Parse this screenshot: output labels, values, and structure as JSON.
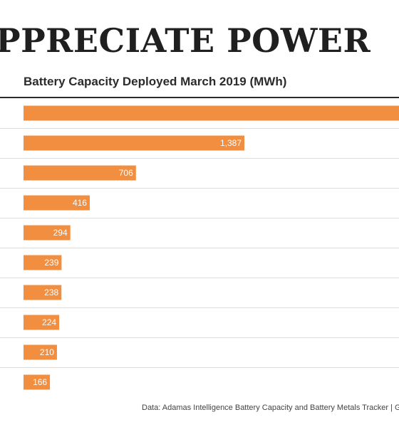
{
  "header": {
    "title": "PPRECIATE POWER",
    "subtitle": "Battery Capacity Deployed March 2019 (MWh)"
  },
  "footer": {
    "source": "Data: Adamas Intelligence Battery Capacity and Battery Metals Tracker | Graph"
  },
  "colors": {
    "bar": "#F28E3F",
    "row_divider": "#dddddd",
    "text_dark": "#1f1f1f"
  },
  "chart_data": {
    "type": "bar",
    "orientation": "horizontal",
    "title": "Battery Capacity Deployed March 2019 (MWh)",
    "xlabel": "",
    "ylabel": "",
    "values": [
      null,
      1387,
      706,
      416,
      294,
      239,
      238,
      224,
      210,
      166
    ],
    "labels": [
      "",
      "1,387",
      "706",
      "416",
      "294",
      "239",
      "238",
      "224",
      "210",
      "166"
    ],
    "grid": false,
    "legend": "none"
  }
}
